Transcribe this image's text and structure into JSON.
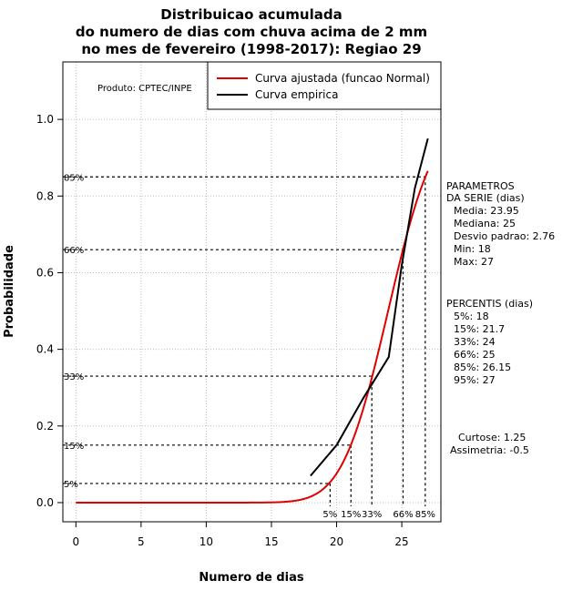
{
  "chart_data": {
    "type": "line",
    "title_lines": [
      "Distribuicao acumulada",
      "do numero de dias com chuva acima de 2 mm",
      "no mes de fevereiro (1998-2017): Regiao 29"
    ],
    "xlabel": "Numero de dias",
    "ylabel": "Probabilidade",
    "xlim": [
      -1,
      28
    ],
    "ylim": [
      -0.05,
      1.15
    ],
    "x_ticks": [
      0,
      5,
      10,
      15,
      20,
      25
    ],
    "y_ticks": [
      0.0,
      0.2,
      0.4,
      0.6,
      0.8,
      1.0
    ],
    "y_tick_labels": [
      "0.0",
      "0.2",
      "0.4",
      "0.6",
      "0.8",
      "1.0"
    ],
    "grid": true,
    "produced_by": "Produto: CPTEC/INPE",
    "legend": {
      "position": "top-right",
      "entries": [
        {
          "label": "Curva ajustada (funcao Normal)",
          "color": "#e00000"
        },
        {
          "label": "Curva empirica",
          "color": "#000000"
        }
      ]
    },
    "series": [
      {
        "name": "Curva ajustada (funcao Normal)",
        "color": "#e00000",
        "kind": "normal_cdf",
        "mean": 23.95,
        "sd": 2.76,
        "x_from": 0,
        "x_to": 27
      },
      {
        "name": "Curva empirica",
        "color": "#000000",
        "x": [
          18,
          20,
          22,
          24,
          25,
          26,
          27
        ],
        "y": [
          0.07,
          0.15,
          0.27,
          0.38,
          0.62,
          0.82,
          0.95
        ]
      }
    ],
    "percentile_markers": [
      {
        "label": "5%",
        "p": 0.05,
        "x": 19.5
      },
      {
        "label": "15%",
        "p": 0.15,
        "x": 21.1
      },
      {
        "label": "33%",
        "p": 0.33,
        "x": 22.7
      },
      {
        "label": "66%",
        "p": 0.66,
        "x": 25.1
      },
      {
        "label": "85%",
        "p": 0.85,
        "x": 26.8
      }
    ],
    "stats_panel": [
      "PARAMETROS",
      "DA SERIE (dias)",
      "Media: 23.95",
      "Mediana: 25",
      "Desvio padrao: 2.76",
      "Min: 18",
      "Max: 27"
    ],
    "percentis_panel": [
      "PERCENTIS (dias)",
      "5%: 18",
      "15%: 21.7",
      "33%: 24",
      "66%: 25",
      "85%: 26.15",
      "95%: 27"
    ],
    "shape_panel": [
      "Curtose: 1.25",
      "Assimetria: -0.5"
    ]
  }
}
